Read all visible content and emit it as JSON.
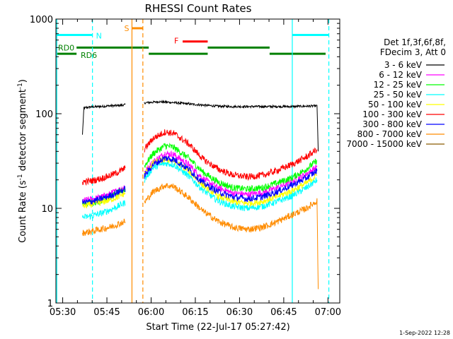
{
  "chart_data": {
    "type": "line",
    "title": "RHESSI Count Rates",
    "xlabel": "Start Time (22-Jul-17 05:27:42)",
    "ylabel_main": "Count Rate (s",
    "ylabel_sup1": "-1",
    "ylabel_mid": " detector segment",
    "ylabel_sup2": "-1",
    "ylabel_end": ")",
    "y_scale": "log",
    "ylim": [
      1,
      1000
    ],
    "y_ticks": [
      {
        "value": 1,
        "label": "1"
      },
      {
        "value": 10,
        "label": "10"
      },
      {
        "value": 100,
        "label": "100"
      },
      {
        "value": 1000,
        "label": "1000"
      }
    ],
    "x_range_minutes": [
      0,
      96.3
    ],
    "x_ticks": [
      {
        "minute": 2.3,
        "label": "05:30"
      },
      {
        "minute": 17.3,
        "label": "05:45"
      },
      {
        "minute": 32.3,
        "label": "06:00"
      },
      {
        "minute": 47.3,
        "label": "06:15"
      },
      {
        "minute": 62.3,
        "label": "06:30"
      },
      {
        "minute": 77.3,
        "label": "06:45"
      },
      {
        "minute": 92.3,
        "label": "07:00"
      }
    ],
    "legend": {
      "header1": "Det 1f,3f,6f,8f,",
      "header2": "FDecim 3, Att 0",
      "placement": "right"
    },
    "series": [
      {
        "name": "3 - 6 keV",
        "color": "#000000",
        "values": [
          [
            9.0,
            60
          ],
          [
            9.5,
            115
          ],
          [
            12,
            118
          ],
          [
            15,
            119
          ],
          [
            18,
            121
          ],
          [
            21,
            122
          ],
          [
            23.5,
            124
          ],
          [
            30,
            130
          ],
          [
            35,
            134
          ],
          [
            40,
            131
          ],
          [
            45,
            127
          ],
          [
            50,
            123
          ],
          [
            55,
            120
          ],
          [
            60,
            119
          ],
          [
            65,
            119
          ],
          [
            70,
            119
          ],
          [
            75,
            119
          ],
          [
            80,
            119
          ],
          [
            85,
            120
          ],
          [
            88.6,
            121
          ],
          [
            89.0,
            40
          ]
        ]
      },
      {
        "name": "6 - 12 keV",
        "color": "#ff00ff",
        "values": [
          [
            9.0,
            12
          ],
          [
            12,
            12.5
          ],
          [
            15,
            13
          ],
          [
            18,
            14
          ],
          [
            21,
            15.5
          ],
          [
            23.5,
            17
          ],
          [
            30,
            24
          ],
          [
            33,
            31
          ],
          [
            37,
            38
          ],
          [
            40,
            37
          ],
          [
            45,
            29
          ],
          [
            50,
            20.5
          ],
          [
            55,
            16.5
          ],
          [
            60,
            14.5
          ],
          [
            65,
            14
          ],
          [
            70,
            14.6
          ],
          [
            75,
            16.5
          ],
          [
            80,
            19
          ],
          [
            85,
            23
          ],
          [
            88.6,
            27.5
          ]
        ]
      },
      {
        "name": "12 - 25 keV",
        "color": "#00ff00",
        "values": [
          [
            9.0,
            11
          ],
          [
            12,
            11.5
          ],
          [
            15,
            12
          ],
          [
            18,
            13
          ],
          [
            21,
            14.5
          ],
          [
            23.5,
            16
          ],
          [
            30,
            28
          ],
          [
            33,
            38
          ],
          [
            37,
            46
          ],
          [
            40,
            44
          ],
          [
            45,
            34
          ],
          [
            50,
            24
          ],
          [
            55,
            19
          ],
          [
            60,
            16.5
          ],
          [
            65,
            16
          ],
          [
            70,
            16.5
          ],
          [
            75,
            18.5
          ],
          [
            80,
            21
          ],
          [
            85,
            26
          ],
          [
            88.6,
            32
          ]
        ]
      },
      {
        "name": "25 - 50 keV",
        "color": "#00ffff",
        "values": [
          [
            9.0,
            8
          ],
          [
            12,
            8.3
          ],
          [
            15,
            8.8
          ],
          [
            18,
            9.5
          ],
          [
            21,
            10.5
          ],
          [
            23.5,
            11.5
          ],
          [
            30,
            20
          ],
          [
            33,
            27
          ],
          [
            37,
            30
          ],
          [
            40,
            29
          ],
          [
            45,
            22
          ],
          [
            50,
            15.5
          ],
          [
            55,
            12
          ],
          [
            60,
            10.5
          ],
          [
            65,
            10
          ],
          [
            70,
            10.5
          ],
          [
            75,
            11.8
          ],
          [
            80,
            13.5
          ],
          [
            85,
            16.5
          ],
          [
            88.6,
            20
          ]
        ]
      },
      {
        "name": "50 - 100 keV",
        "color": "#ffff00",
        "values": [
          [
            9.0,
            10.5
          ],
          [
            12,
            11
          ],
          [
            15,
            11.5
          ],
          [
            18,
            12.2
          ],
          [
            21,
            13.2
          ],
          [
            23.5,
            14.5
          ],
          [
            30,
            23
          ],
          [
            33,
            30
          ],
          [
            37,
            33
          ],
          [
            40,
            32
          ],
          [
            45,
            25
          ],
          [
            50,
            17.5
          ],
          [
            55,
            13.5
          ],
          [
            60,
            11.8
          ],
          [
            65,
            11.3
          ],
          [
            70,
            11.8
          ],
          [
            75,
            13.3
          ],
          [
            80,
            15.3
          ],
          [
            85,
            18.5
          ],
          [
            88.6,
            22.5
          ]
        ]
      },
      {
        "name": "100 - 300 keV",
        "color": "#ff0000",
        "values": [
          [
            9.0,
            19
          ],
          [
            12,
            19.5
          ],
          [
            15,
            20.5
          ],
          [
            18,
            22
          ],
          [
            21,
            24
          ],
          [
            23.5,
            26.5
          ],
          [
            30,
            42
          ],
          [
            33,
            55
          ],
          [
            37,
            64
          ],
          [
            40,
            62
          ],
          [
            45,
            48
          ],
          [
            50,
            33
          ],
          [
            55,
            26
          ],
          [
            60,
            22.5
          ],
          [
            65,
            21.5
          ],
          [
            70,
            22.3
          ],
          [
            75,
            25
          ],
          [
            80,
            29
          ],
          [
            85,
            35
          ],
          [
            88.6,
            42
          ]
        ]
      },
      {
        "name": "300 - 800 keV",
        "color": "#0000ff",
        "values": [
          [
            9.0,
            11.5
          ],
          [
            12,
            11.8
          ],
          [
            15,
            12.5
          ],
          [
            18,
            13.5
          ],
          [
            21,
            14.8
          ],
          [
            23.5,
            16
          ],
          [
            30,
            22
          ],
          [
            33,
            29
          ],
          [
            37,
            34
          ],
          [
            40,
            33
          ],
          [
            45,
            26
          ],
          [
            50,
            18.5
          ],
          [
            55,
            15
          ],
          [
            60,
            13.2
          ],
          [
            65,
            12.6
          ],
          [
            70,
            13.2
          ],
          [
            75,
            15
          ],
          [
            80,
            17.5
          ],
          [
            85,
            21
          ],
          [
            88.6,
            25
          ]
        ]
      },
      {
        "name": "800 - 7000 keV",
        "color": "#ff8c00",
        "values": [
          [
            9.0,
            5.5
          ],
          [
            12,
            5.7
          ],
          [
            15,
            6
          ],
          [
            18,
            6.3
          ],
          [
            21,
            6.8
          ],
          [
            23.5,
            7.3
          ],
          [
            30,
            11.5
          ],
          [
            33,
            15
          ],
          [
            37,
            17.5
          ],
          [
            40,
            17
          ],
          [
            45,
            13
          ],
          [
            50,
            9.3
          ],
          [
            55,
            7.3
          ],
          [
            60,
            6.3
          ],
          [
            65,
            6
          ],
          [
            70,
            6.3
          ],
          [
            75,
            7.2
          ],
          [
            80,
            8.5
          ],
          [
            85,
            10
          ],
          [
            88.6,
            12
          ],
          [
            89.0,
            1.4
          ]
        ]
      },
      {
        "name": "7000 - 15000 keV",
        "color": "#8b5a00",
        "values": []
      }
    ],
    "vertical_markers": [
      {
        "minute": 0.3,
        "color": "#00ffff",
        "style": "solid"
      },
      {
        "minute": 12.4,
        "color": "#00ffff",
        "style": "dashed"
      },
      {
        "minute": 25.8,
        "color": "#ff8c00",
        "style": "solid"
      },
      {
        "minute": 29.5,
        "color": "#ff8c00",
        "style": "dashed"
      },
      {
        "minute": 80.2,
        "color": "#00ffff",
        "style": "solid"
      },
      {
        "minute": 92.6,
        "color": "#00ffff",
        "style": "dashed"
      }
    ],
    "flag_bars": [
      {
        "label": "N",
        "color": "#00ffff",
        "segments": [
          [
            0.3,
            12.4
          ],
          [
            80.2,
            92.6
          ]
        ],
        "level": "n"
      },
      {
        "label": "S",
        "color": "#ff8c00",
        "segments": [
          [
            25.8,
            29.5
          ]
        ],
        "level": "s"
      },
      {
        "label": "F",
        "color": "#ff0000",
        "segments": [
          [
            43.0,
            51.5
          ]
        ],
        "level": "f"
      },
      {
        "label": "RD0",
        "color": "#008000",
        "segments": [
          [
            7.0,
            31.5
          ],
          [
            51.5,
            72.5
          ]
        ],
        "level": "rd0"
      },
      {
        "label": "RD6",
        "color": "#008000",
        "segments": [
          [
            0.3,
            7.0
          ],
          [
            31.5,
            51.5
          ],
          [
            72.5,
            91.5
          ]
        ],
        "level": "rd6"
      }
    ]
  },
  "timestamp": "1-Sep-2022 12:28"
}
